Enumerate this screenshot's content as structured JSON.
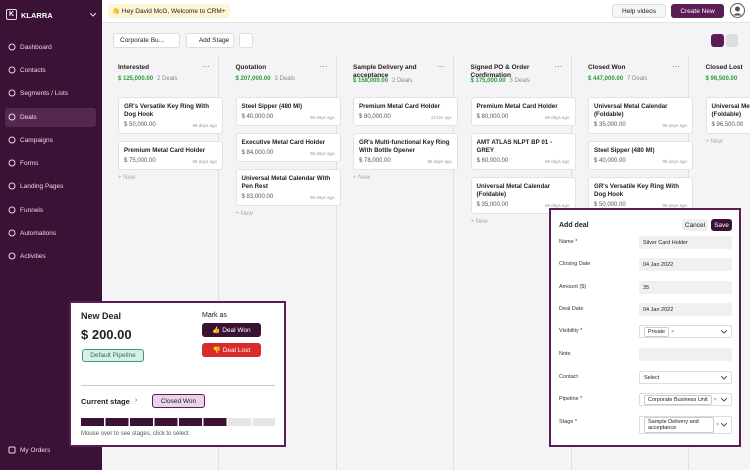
{
  "brand": {
    "letter": "K",
    "name": "KLARRA"
  },
  "nav": [
    "Dashboard",
    "Contacts",
    "Segments / Lists",
    "Deals",
    "Campaigns",
    "Forms",
    "Landing Pages",
    "Funnels",
    "Automations",
    "Activities"
  ],
  "nav_bottom": "My Orders",
  "greeting": "👋 Hey David McG, Welcome to CRM+",
  "top_buttons": {
    "help": "Help videos",
    "create": "Create New"
  },
  "toolbar": {
    "pipeline": "Corporate Bu...",
    "add_stage": "Add Stage"
  },
  "new_label": "+ New",
  "columns": [
    {
      "title": "Interested",
      "amount": "$ 125,000.00",
      "count": "2 Deals",
      "cards": [
        {
          "title": "GR's Versatile Key Ring With Dog Hook",
          "amount": "$ 50,000.00",
          "time": "98 days ago"
        },
        {
          "title": "Premium Metal Card Holder",
          "amount": "$ 75,000.00",
          "time": "98 days ago"
        }
      ]
    },
    {
      "title": "Quotation",
      "amount": "$ 207,000.00",
      "count": "3 Deals",
      "cards": [
        {
          "title": "Steel Sipper (480 Ml)",
          "amount": "$ 40,000.00",
          "time": "98 days ago"
        },
        {
          "title": "Executive Metal Card Holder",
          "amount": "$ 84,000.00",
          "time": "98 days ago"
        },
        {
          "title": "Universal Metal Calendar With Pen Rest",
          "amount": "$ 83,000.00",
          "time": "98 days ago"
        }
      ]
    },
    {
      "title": "Sample Delivery and acceptance",
      "amount": "$ 158,000.00",
      "count": "2 Deals",
      "cards": [
        {
          "title": "Premium Metal Card Holder",
          "amount": "$ 80,000.00",
          "time": "13 hrs ago"
        },
        {
          "title": "GR's Multi-functional Key Ring With Bottle Opener",
          "amount": "$ 78,000.00",
          "time": "96 days ago"
        }
      ]
    },
    {
      "title": "Signed PO & Order Confirmation",
      "amount": "$ 175,000.00",
      "count": "3 Deals",
      "cards": [
        {
          "title": "Premium Metal Card Holder",
          "amount": "$ 80,000.00",
          "time": "98 days ago"
        },
        {
          "title": "AMT ATLAS NLPT BP 01 - GREY",
          "amount": "$ 60,000.00",
          "time": "98 days ago"
        },
        {
          "title": "Universal Metal Calendar (Foldable)",
          "amount": "$ 35,000.00",
          "time": "98 days ago"
        }
      ]
    },
    {
      "title": "Closed Won",
      "amount": "$ 447,000.00",
      "count": "7 Deals",
      "cards": [
        {
          "title": "Universal Metal Calendar (Foldable)",
          "amount": "$ 35,000.00",
          "time": "98 days ago"
        },
        {
          "title": "Steel Sipper (480 Ml)",
          "amount": "$ 40,000.00",
          "time": "98 days ago"
        },
        {
          "title": "GR's Versatile Key Ring With Dog Hook",
          "amount": "$ 50,000.00",
          "time": "98 days ago"
        }
      ]
    },
    {
      "title": "Closed Lost",
      "amount": "$ 96,500.00",
      "cards": [
        {
          "title": "Universal Metal Calendar (Foldable)",
          "amount": "$ 96,500.00"
        }
      ]
    }
  ],
  "add_deal": {
    "title": "Add deal",
    "cancel": "Cancel",
    "save": "Save",
    "fields": [
      {
        "label": "Name *",
        "value": "Silver Card Holder"
      },
      {
        "label": "Closing Date",
        "value": "04 Jan 2022"
      },
      {
        "label": "Amount ($)",
        "value": "35"
      },
      {
        "label": "Deal Date",
        "value": "04 Jan 2022"
      },
      {
        "label": "Visibility *",
        "value": "Private",
        "chip": true
      },
      {
        "label": "Note"
      },
      {
        "label": "Contact",
        "value": "Select",
        "select": true
      },
      {
        "label": "Pipeline *",
        "value": "Corporate Business Unit",
        "chip": true
      },
      {
        "label": "Stage *",
        "value": "Sample Delivery and acceptance",
        "chip": true
      }
    ]
  },
  "new_deal": {
    "title": "New Deal",
    "amount": "$ 200.00",
    "pipeline": "Default Pipeline",
    "mark_as": "Mark as",
    "won": "👍 Deal Won",
    "lost": "👎 Deal Lost",
    "current_stage": "Current stage",
    "stage": "Closed Won",
    "hint": "Mouse over to see stages, click to select"
  }
}
